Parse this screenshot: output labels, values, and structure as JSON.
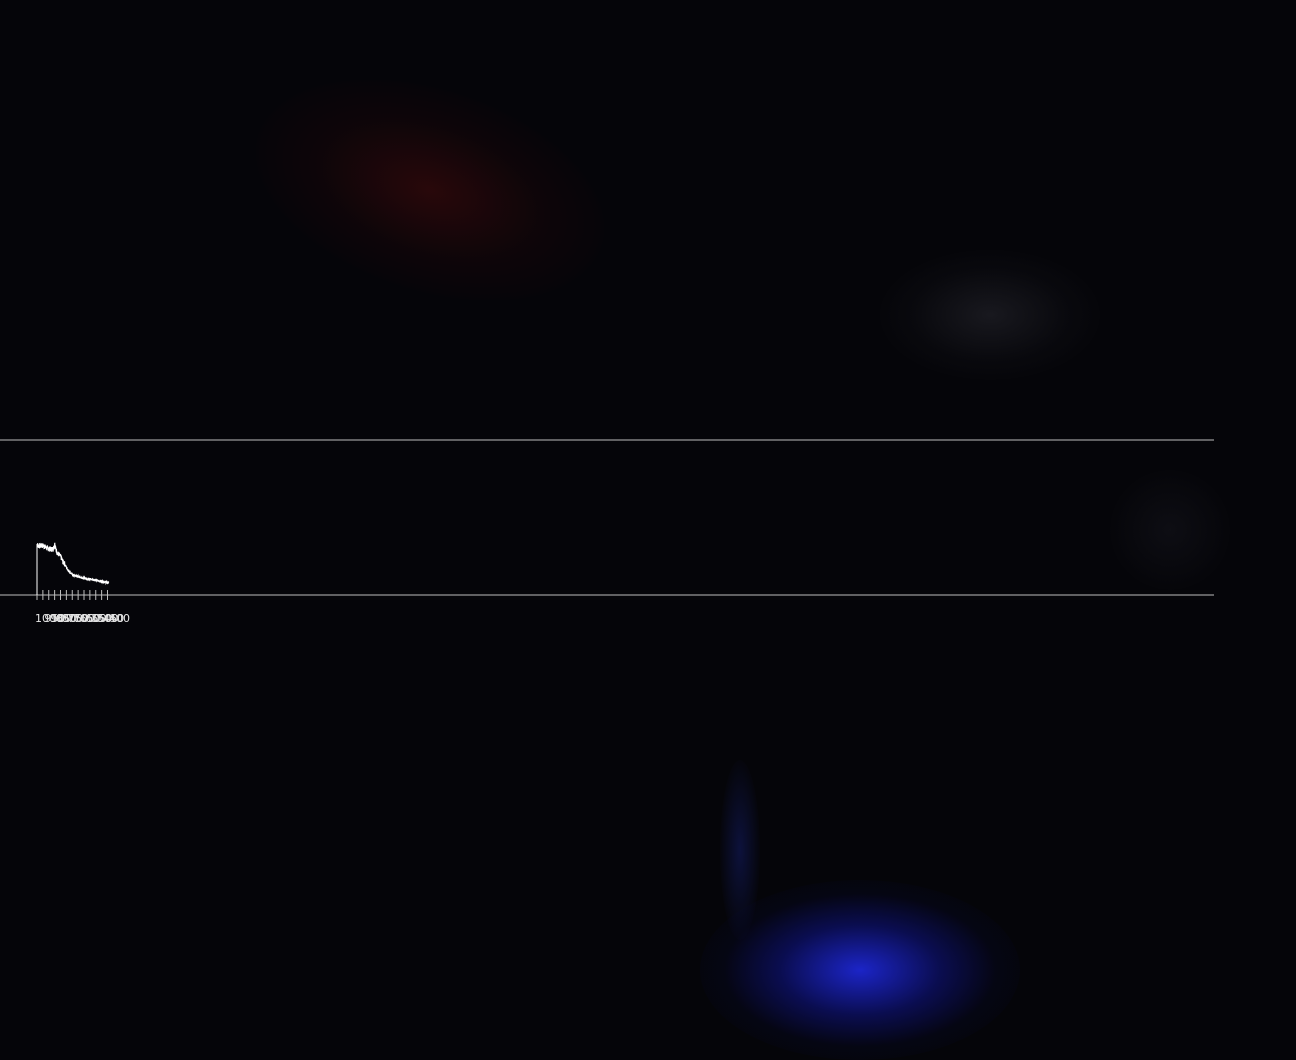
{
  "chart_data": {
    "type": "line",
    "title": "",
    "xlabel": "",
    "ylabel": "",
    "xlim": [
      1000,
      390
    ],
    "ylim": [
      0,
      1
    ],
    "x_ticks": [
      1000,
      950,
      900,
      850,
      800,
      750,
      700,
      650,
      600,
      550,
      500,
      450,
      400
    ],
    "x_tick_labels": [
      "1000",
      "950",
      "900",
      "850",
      "800",
      "750",
      "700",
      "650",
      "600",
      "550",
      "500",
      "450",
      "400"
    ],
    "grid": false,
    "series": [
      {
        "name": "",
        "color": "#ffffff",
        "x": [
          1000,
          990,
          975,
          960,
          945,
          930,
          915,
          900,
          885,
          870,
          855,
          848,
          840,
          825,
          810,
          795,
          780,
          765,
          750,
          735,
          720,
          705,
          690,
          675,
          660,
          645,
          630,
          615,
          600,
          585,
          570,
          555,
          540,
          525,
          510,
          495,
          480,
          465,
          450,
          435,
          420,
          405,
          390
        ],
        "y": [
          0.95,
          0.92,
          0.91,
          0.92,
          0.92,
          0.89,
          0.86,
          0.85,
          0.84,
          0.84,
          0.88,
          0.97,
          0.84,
          0.75,
          0.71,
          0.66,
          0.56,
          0.52,
          0.44,
          0.38,
          0.33,
          0.29,
          0.26,
          0.25,
          0.24,
          0.23,
          0.22,
          0.21,
          0.2,
          0.19,
          0.18,
          0.18,
          0.17,
          0.16,
          0.16,
          0.15,
          0.14,
          0.13,
          0.13,
          0.12,
          0.11,
          0.1,
          0.1
        ]
      }
    ]
  },
  "colors": {
    "background": "#050509",
    "axis": "#bdbdbd",
    "line": "#ffffff",
    "label": "#e6e6e6"
  }
}
